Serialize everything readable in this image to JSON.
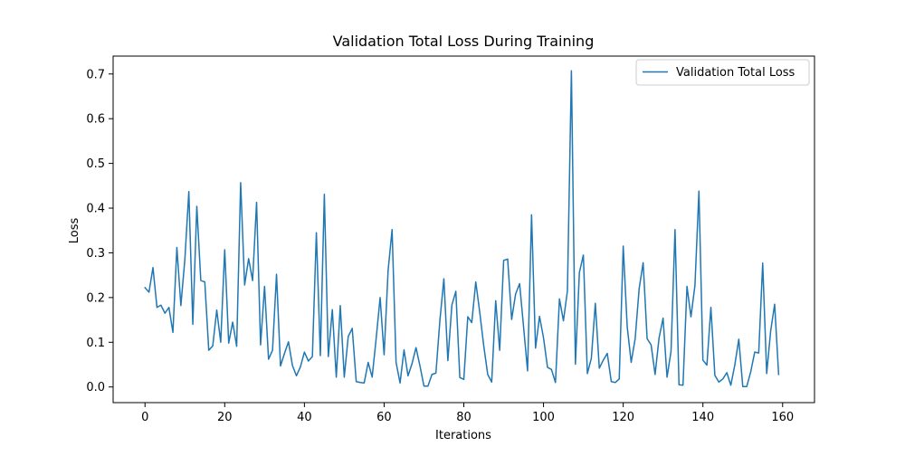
{
  "chart_data": {
    "type": "line",
    "title": "Validation Total Loss During Training",
    "xlabel": "Iterations",
    "ylabel": "Loss",
    "xlim": [
      -8,
      168
    ],
    "ylim": [
      -0.035,
      0.74
    ],
    "xticks": [
      0,
      20,
      40,
      60,
      80,
      100,
      120,
      140,
      160
    ],
    "yticks": [
      0.0,
      0.1,
      0.2,
      0.3,
      0.4,
      0.5,
      0.6,
      0.7
    ],
    "ytick_labels": [
      "0.0",
      "0.1",
      "0.2",
      "0.3",
      "0.4",
      "0.5",
      "0.6",
      "0.7"
    ],
    "grid": false,
    "legend_position": "top-right",
    "series": [
      {
        "name": "Validation Total Loss",
        "color": "#1f77b4",
        "x": [
          0,
          1,
          2,
          3,
          4,
          5,
          6,
          7,
          8,
          9,
          10,
          11,
          12,
          13,
          14,
          15,
          16,
          17,
          18,
          19,
          20,
          21,
          22,
          23,
          24,
          25,
          26,
          27,
          28,
          29,
          30,
          31,
          32,
          33,
          34,
          35,
          36,
          37,
          38,
          39,
          40,
          41,
          42,
          43,
          44,
          45,
          46,
          47,
          48,
          49,
          50,
          51,
          52,
          53,
          54,
          55,
          56,
          57,
          58,
          59,
          60,
          61,
          62,
          63,
          64,
          65,
          66,
          67,
          68,
          69,
          70,
          71,
          72,
          73,
          74,
          75,
          76,
          77,
          78,
          79,
          80,
          81,
          82,
          83,
          84,
          85,
          86,
          87,
          88,
          89,
          90,
          91,
          92,
          93,
          94,
          95,
          96,
          97,
          98,
          99,
          100,
          101,
          102,
          103,
          104,
          105,
          106,
          107,
          108,
          109,
          110,
          111,
          112,
          113,
          114,
          115,
          116,
          117,
          118,
          119,
          120,
          121,
          122,
          123,
          124,
          125,
          126,
          127,
          128,
          129,
          130,
          131,
          132,
          133,
          134,
          135,
          136,
          137,
          138,
          139,
          140,
          141,
          142,
          143,
          144,
          145,
          146,
          147,
          148,
          149,
          150,
          151,
          152,
          153,
          154,
          155,
          156,
          157,
          158,
          159
        ],
        "values": [
          0.222,
          0.212,
          0.267,
          0.178,
          0.183,
          0.165,
          0.178,
          0.122,
          0.312,
          0.182,
          0.285,
          0.437,
          0.14,
          0.404,
          0.238,
          0.235,
          0.082,
          0.092,
          0.172,
          0.1,
          0.307,
          0.098,
          0.145,
          0.091,
          0.457,
          0.228,
          0.287,
          0.238,
          0.413,
          0.094,
          0.225,
          0.062,
          0.082,
          0.252,
          0.047,
          0.075,
          0.101,
          0.048,
          0.025,
          0.045,
          0.078,
          0.058,
          0.068,
          0.345,
          0.07,
          0.431,
          0.068,
          0.173,
          0.022,
          0.182,
          0.022,
          0.113,
          0.131,
          0.012,
          0.01,
          0.009,
          0.055,
          0.022,
          0.108,
          0.2,
          0.072,
          0.26,
          0.352,
          0.055,
          0.009,
          0.083,
          0.025,
          0.052,
          0.088,
          0.047,
          0.002,
          0.002,
          0.028,
          0.031,
          0.149,
          0.242,
          0.059,
          0.183,
          0.214,
          0.021,
          0.017,
          0.157,
          0.144,
          0.235,
          0.167,
          0.092,
          0.028,
          0.011,
          0.193,
          0.082,
          0.283,
          0.286,
          0.151,
          0.208,
          0.231,
          0.134,
          0.036,
          0.385,
          0.087,
          0.158,
          0.11,
          0.044,
          0.039,
          0.01,
          0.197,
          0.148,
          0.215,
          0.707,
          0.051,
          0.256,
          0.295,
          0.03,
          0.064,
          0.187,
          0.042,
          0.06,
          0.075,
          0.012,
          0.01,
          0.018,
          0.315,
          0.135,
          0.055,
          0.108,
          0.22,
          0.278,
          0.108,
          0.094,
          0.028,
          0.11,
          0.154,
          0.022,
          0.08,
          0.352,
          0.005,
          0.004,
          0.225,
          0.157,
          0.227,
          0.438,
          0.06,
          0.049,
          0.178,
          0.026,
          0.011,
          0.018,
          0.032,
          0.004,
          0.049,
          0.107,
          0.001,
          0.001,
          0.034,
          0.078,
          0.076,
          0.277,
          0.03,
          0.125,
          0.185,
          0.028
        ]
      }
    ]
  }
}
